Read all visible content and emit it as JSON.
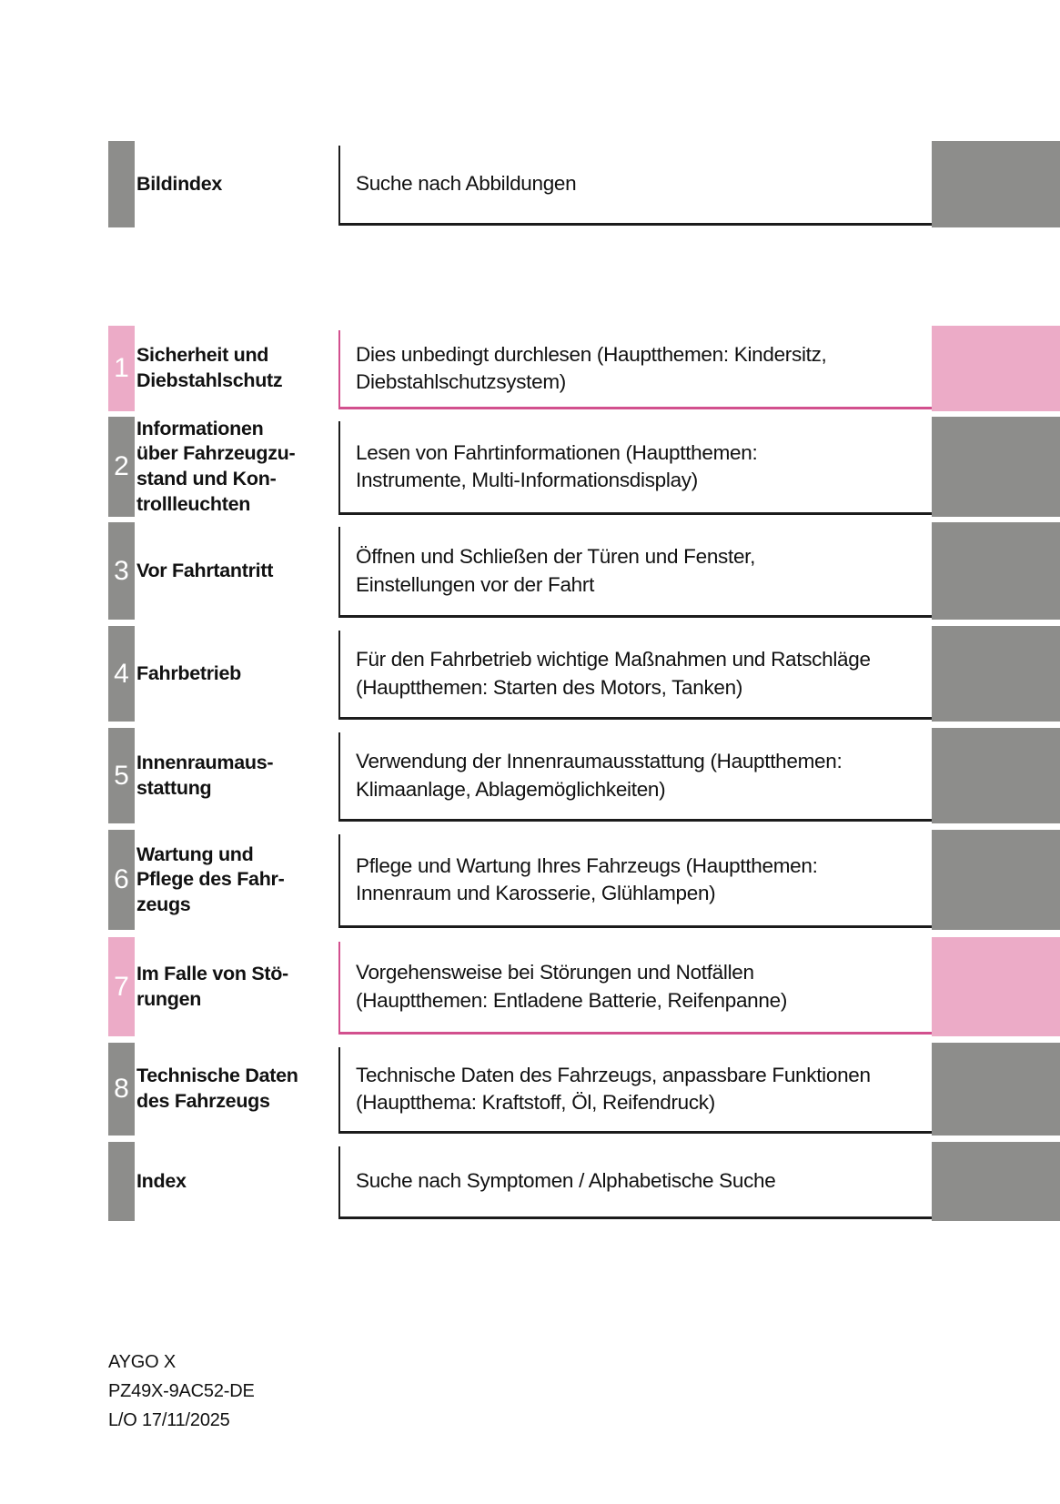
{
  "document": {
    "type": "owner-manual-table-of-contents",
    "language": "de"
  },
  "colors": {
    "chapter_gray": "#8d8d8b",
    "chapter_pink": "#ecabc7",
    "pink_rule": "#d2508e",
    "black_rule": "#1c1c1c"
  },
  "toc": {
    "rows": [
      {
        "number": "",
        "accent": "gray",
        "title": [
          "Bildindex"
        ],
        "description": [
          "Suche nach Abbildungen"
        ]
      },
      {
        "number": "1",
        "accent": "pink",
        "title": [
          "Sicherheit und",
          "Diebstahlschutz"
        ],
        "description": [
          "Dies unbedingt durchlesen (Hauptthemen: Kindersitz,",
          "Diebstahlschutzsystem)"
        ]
      },
      {
        "number": "2",
        "accent": "gray",
        "title": [
          "Informationen",
          "über Fahrzeugzu-",
          "stand und Kon-",
          "trollleuchten"
        ],
        "description": [
          "Lesen von Fahrtinformationen (Hauptthemen:",
          "Instrumente, Multi-Informationsdisplay)"
        ]
      },
      {
        "number": "3",
        "accent": "gray",
        "title": [
          "Vor Fahrtantritt"
        ],
        "description": [
          "Öffnen und Schließen der Türen und Fenster,",
          "Einstellungen vor der Fahrt"
        ]
      },
      {
        "number": "4",
        "accent": "gray",
        "title": [
          "Fahrbetrieb"
        ],
        "description": [
          "Für den Fahrbetrieb wichtige Maßnahmen und Ratschläge",
          "(Hauptthemen: Starten des Motors, Tanken)"
        ]
      },
      {
        "number": "5",
        "accent": "gray",
        "title": [
          "Innenraumaus-",
          "stattung"
        ],
        "description": [
          "Verwendung der Innenraumausstattung (Hauptthemen:",
          "Klimaanlage, Ablagemöglichkeiten)"
        ]
      },
      {
        "number": "6",
        "accent": "gray",
        "title": [
          "Wartung und",
          "Pflege des Fahr-",
          "zeugs"
        ],
        "description": [
          "Pflege und Wartung Ihres Fahrzeugs (Hauptthemen:",
          "Innenraum und Karosserie, Glühlampen)"
        ]
      },
      {
        "number": "7",
        "accent": "pink",
        "title": [
          "Im Falle von Stö-",
          "rungen"
        ],
        "description": [
          "Vorgehensweise bei Störungen und Notfällen",
          "(Hauptthemen: Entladene Batterie, Reifenpanne)"
        ]
      },
      {
        "number": "8",
        "accent": "gray",
        "title": [
          "Technische Daten",
          "des Fahrzeugs"
        ],
        "description": [
          "Technische Daten des Fahrzeugs, anpassbare Funktionen",
          "(Hauptthema: Kraftstoff, Öl, Reifendruck)"
        ]
      },
      {
        "number": "",
        "accent": "gray",
        "title": [
          "Index"
        ],
        "description": [
          "Suche nach Symptomen / Alphabetische Suche"
        ]
      }
    ]
  },
  "footer": {
    "lines": [
      "AYGO X",
      "PZ49X-9AC52-DE",
      "L/O 17/11/2025"
    ]
  }
}
